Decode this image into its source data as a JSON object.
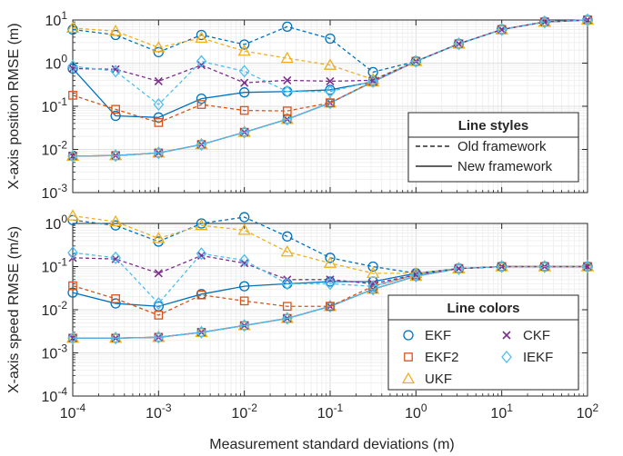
{
  "figure": {
    "xlabel": "Measurement standard deviations (m)"
  },
  "colors": {
    "EKF": "#0072BD",
    "EKF2": "#D95319",
    "UKF": "#EDB120",
    "CKF": "#7E2F8E",
    "IEKF": "#4DBEEE",
    "axis": "#262626",
    "grid": "#dcdcdc"
  },
  "legend_styles": {
    "title": "Line styles",
    "items": [
      {
        "label": "Old framework",
        "dash": "dashed"
      },
      {
        "label": "New framework",
        "dash": "solid"
      }
    ]
  },
  "legend_colors": {
    "title": "Line colors",
    "items": [
      {
        "label": "EKF",
        "marker": "circle",
        "color": "#0072BD"
      },
      {
        "label": "CKF",
        "marker": "x",
        "color": "#7E2F8E"
      },
      {
        "label": "EKF2",
        "marker": "square",
        "color": "#D95319"
      },
      {
        "label": "IEKF",
        "marker": "diamond",
        "color": "#4DBEEE"
      },
      {
        "label": "UKF",
        "marker": "triangle",
        "color": "#EDB120"
      }
    ]
  },
  "chart_data": [
    {
      "type": "line",
      "ylabel": "X-axis position RMSE (m)",
      "xscale": "log",
      "yscale": "log",
      "xlim": [
        0.0001,
        100
      ],
      "ylim": [
        0.001,
        10
      ],
      "xtick_labels": [],
      "ytick_labels": [
        "10^-3",
        "10^-2",
        "10^-1",
        "10^0",
        "10^1"
      ],
      "x": [
        0.0001,
        0.000316,
        0.001,
        0.00316,
        0.01,
        0.0316,
        0.1,
        0.316,
        1,
        3.16,
        10,
        31.6,
        100
      ],
      "grid": true,
      "series": [
        {
          "name": "EKF",
          "framework": "old",
          "values": [
            6.0,
            4.5,
            1.8,
            4.5,
            2.7,
            7.0,
            3.7,
            0.62,
            1.1,
            2.8,
            6.0,
            9.0,
            10.0
          ]
        },
        {
          "name": "EKF2",
          "framework": "old",
          "values": [
            0.18,
            0.085,
            0.042,
            0.11,
            0.08,
            0.078,
            0.12,
            0.38,
            1.1,
            2.8,
            6.0,
            9.0,
            10.0
          ]
        },
        {
          "name": "UKF",
          "framework": "old",
          "values": [
            6.5,
            5.5,
            2.3,
            3.8,
            1.9,
            1.3,
            0.9,
            0.42,
            1.1,
            2.8,
            6.0,
            9.0,
            10.0
          ]
        },
        {
          "name": "CKF",
          "framework": "old",
          "values": [
            0.75,
            0.72,
            0.38,
            0.9,
            0.35,
            0.4,
            0.38,
            0.4,
            1.1,
            2.8,
            6.0,
            9.0,
            10.0
          ]
        },
        {
          "name": "IEKF",
          "framework": "old",
          "values": [
            0.85,
            0.65,
            0.11,
            1.1,
            0.65,
            0.22,
            0.22,
            0.38,
            1.1,
            2.8,
            6.0,
            9.0,
            10.0
          ]
        },
        {
          "name": "EKF",
          "framework": "new",
          "values": [
            0.75,
            0.06,
            0.055,
            0.15,
            0.21,
            0.22,
            0.24,
            0.37,
            1.1,
            2.8,
            6.0,
            9.0,
            10.0
          ]
        },
        {
          "name": "EKF2",
          "framework": "new",
          "values": [
            0.007,
            0.0072,
            0.0083,
            0.013,
            0.025,
            0.05,
            0.12,
            0.37,
            1.1,
            2.8,
            6.0,
            9.0,
            10.0
          ]
        },
        {
          "name": "UKF",
          "framework": "new",
          "values": [
            0.007,
            0.0072,
            0.0083,
            0.013,
            0.025,
            0.05,
            0.12,
            0.37,
            1.1,
            2.8,
            6.0,
            9.0,
            10.0
          ]
        },
        {
          "name": "CKF",
          "framework": "new",
          "values": [
            0.007,
            0.0072,
            0.0083,
            0.013,
            0.025,
            0.05,
            0.12,
            0.37,
            1.1,
            2.8,
            6.0,
            9.0,
            10.0
          ]
        },
        {
          "name": "IEKF",
          "framework": "new",
          "values": [
            0.007,
            0.0072,
            0.0083,
            0.013,
            0.025,
            0.05,
            0.12,
            0.37,
            1.1,
            2.8,
            6.0,
            9.0,
            10.0
          ]
        }
      ]
    },
    {
      "type": "line",
      "ylabel": "X-axis speed RMSE (m/s)",
      "xscale": "log",
      "yscale": "log",
      "xlim": [
        0.0001,
        100
      ],
      "ylim": [
        0.0001,
        1
      ],
      "xtick_labels": [
        "10^-4",
        "10^-3",
        "10^-2",
        "10^-1",
        "10^0",
        "10^1",
        "10^2"
      ],
      "ytick_labels": [
        "10^-4",
        "10^-3",
        "10^-2",
        "10^-1",
        "10^0"
      ],
      "x": [
        0.0001,
        0.000316,
        0.001,
        0.00316,
        0.01,
        0.0316,
        0.1,
        0.316,
        1,
        3.16,
        10,
        31.6,
        100
      ],
      "grid": true,
      "series": [
        {
          "name": "EKF",
          "framework": "old",
          "values": [
            1.2,
            0.9,
            0.38,
            1.0,
            1.4,
            0.5,
            0.16,
            0.1,
            0.07,
            0.09,
            0.1,
            0.1,
            0.1
          ]
        },
        {
          "name": "EKF2",
          "framework": "old",
          "values": [
            0.036,
            0.018,
            0.0075,
            0.022,
            0.016,
            0.012,
            0.012,
            0.035,
            0.065,
            0.09,
            0.1,
            0.1,
            0.1
          ]
        },
        {
          "name": "UKF",
          "framework": "old",
          "values": [
            1.5,
            1.1,
            0.45,
            0.9,
            0.7,
            0.22,
            0.12,
            0.07,
            0.07,
            0.09,
            0.1,
            0.1,
            0.1
          ]
        },
        {
          "name": "CKF",
          "framework": "old",
          "values": [
            0.16,
            0.15,
            0.07,
            0.18,
            0.12,
            0.05,
            0.05,
            0.04,
            0.065,
            0.09,
            0.1,
            0.1,
            0.1
          ]
        },
        {
          "name": "IEKF",
          "framework": "old",
          "values": [
            0.21,
            0.16,
            0.014,
            0.2,
            0.14,
            0.04,
            0.04,
            0.035,
            0.065,
            0.09,
            0.1,
            0.1,
            0.1
          ]
        },
        {
          "name": "EKF",
          "framework": "new",
          "values": [
            0.025,
            0.014,
            0.012,
            0.023,
            0.035,
            0.04,
            0.045,
            0.045,
            0.07,
            0.09,
            0.1,
            0.1,
            0.1
          ]
        },
        {
          "name": "EKF2",
          "framework": "new",
          "values": [
            0.0022,
            0.0022,
            0.0023,
            0.003,
            0.0043,
            0.0063,
            0.012,
            0.03,
            0.06,
            0.09,
            0.1,
            0.1,
            0.1
          ]
        },
        {
          "name": "UKF",
          "framework": "new",
          "values": [
            0.0022,
            0.0022,
            0.0023,
            0.003,
            0.0043,
            0.0063,
            0.012,
            0.03,
            0.06,
            0.09,
            0.1,
            0.1,
            0.1
          ]
        },
        {
          "name": "CKF",
          "framework": "new",
          "values": [
            0.0022,
            0.0022,
            0.0023,
            0.003,
            0.0043,
            0.0063,
            0.012,
            0.03,
            0.06,
            0.09,
            0.1,
            0.1,
            0.1
          ]
        },
        {
          "name": "IEKF",
          "framework": "new",
          "values": [
            0.0022,
            0.0022,
            0.0023,
            0.003,
            0.0043,
            0.0063,
            0.012,
            0.03,
            0.06,
            0.09,
            0.1,
            0.1,
            0.1
          ]
        }
      ]
    }
  ]
}
